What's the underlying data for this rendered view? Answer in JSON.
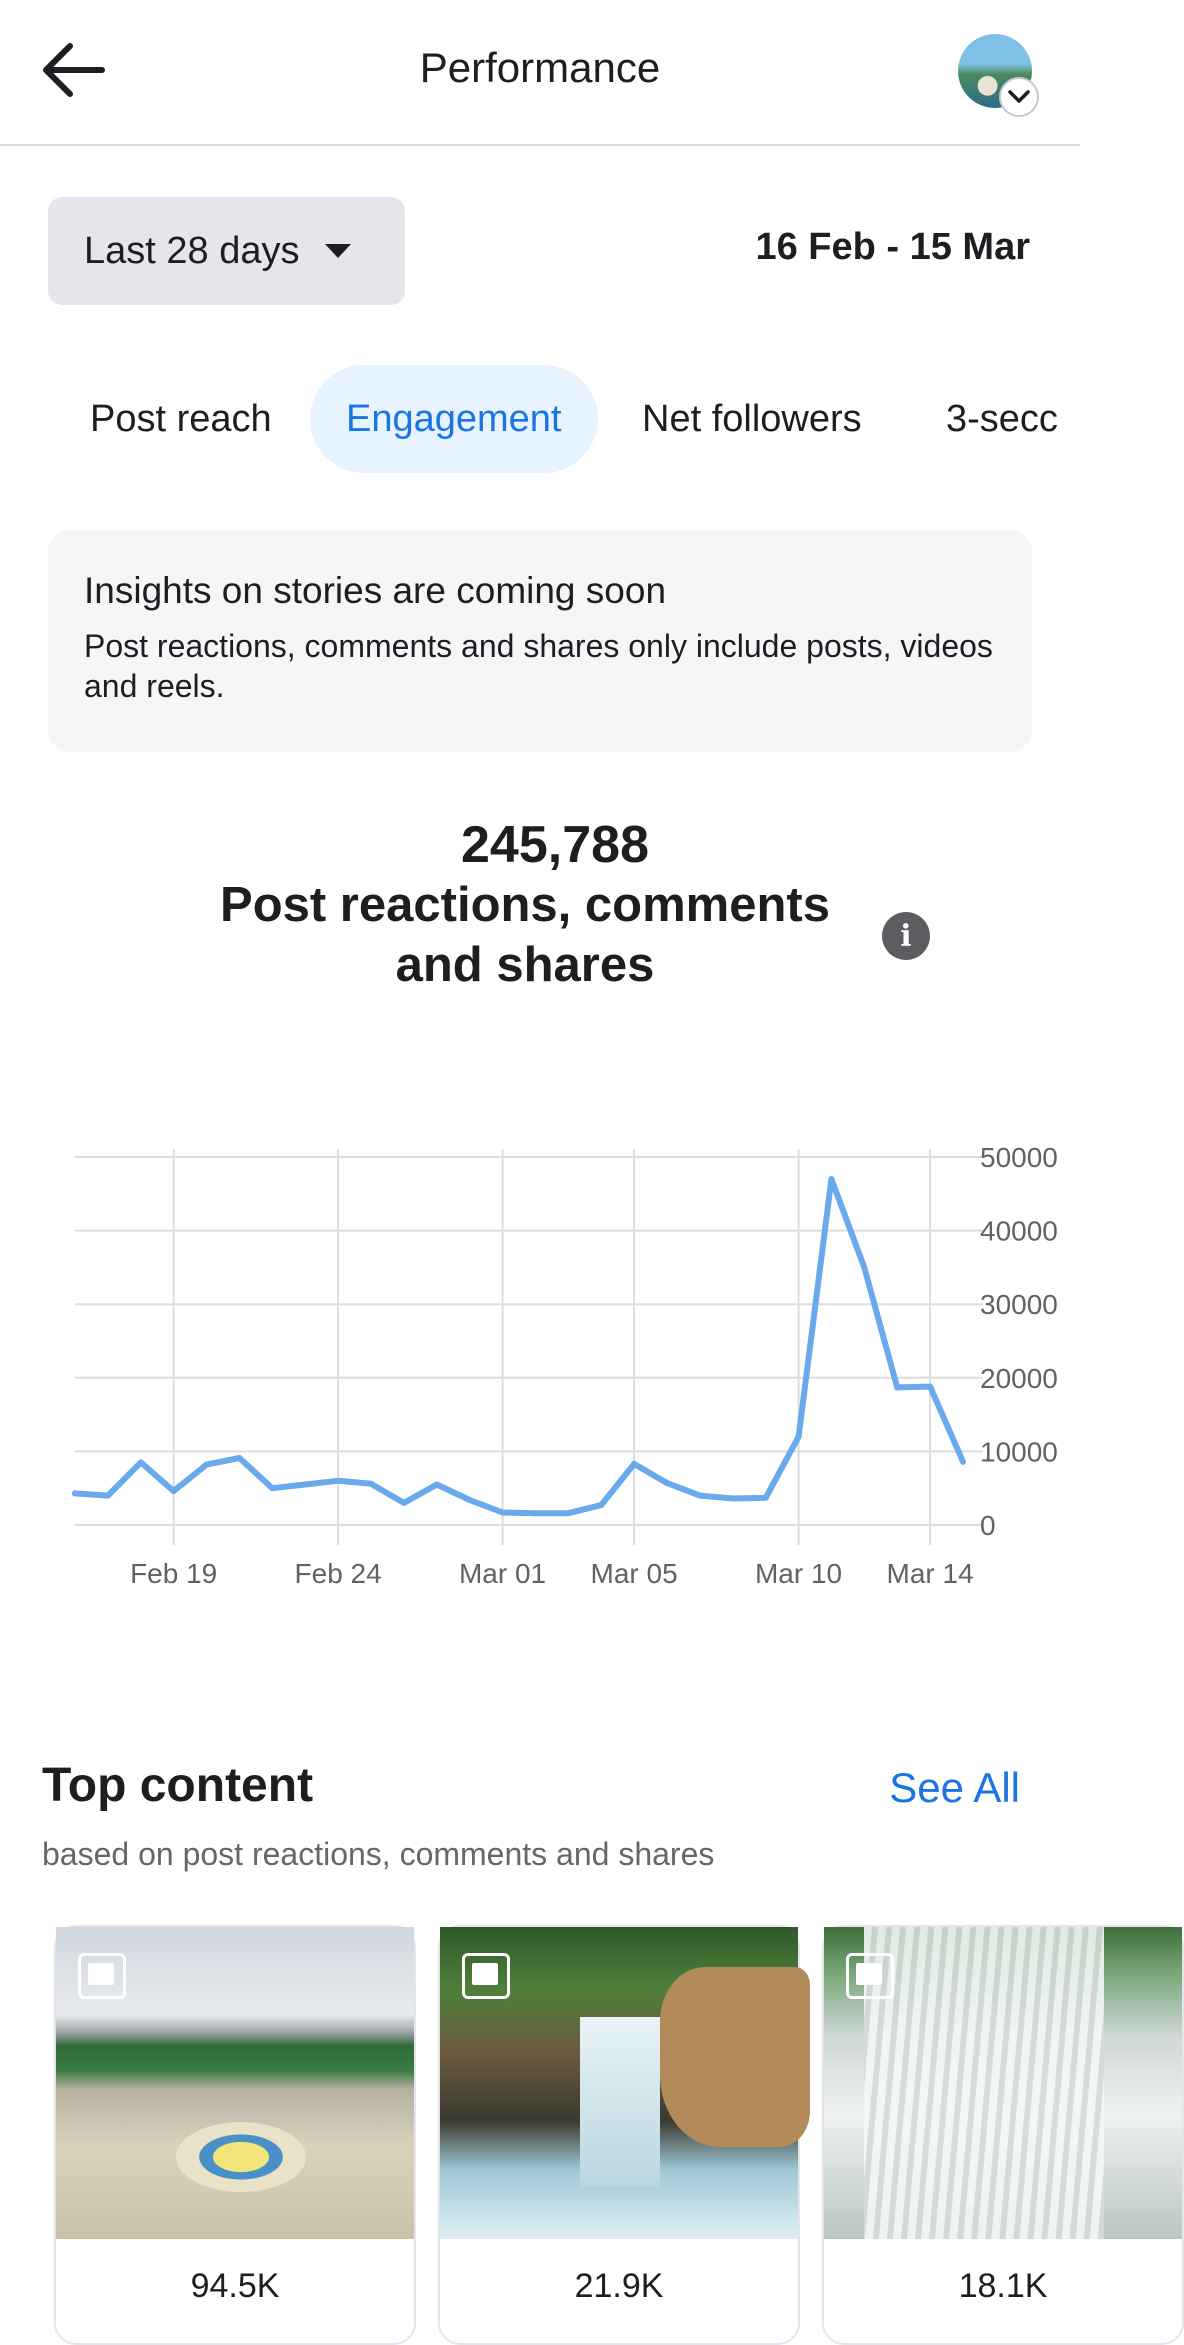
{
  "header": {
    "title": "Performance",
    "back_icon": "arrow-left-icon",
    "avatar_icon": "profile-avatar"
  },
  "filters": {
    "date_range_label": "Last 28 days",
    "date_span": "16 Feb - 15 Mar"
  },
  "tabs": [
    {
      "label": "Post reach",
      "active": false
    },
    {
      "label": "Engagement",
      "active": true
    },
    {
      "label": "Net followers",
      "active": false
    },
    {
      "label": "3-secc",
      "active": false
    }
  ],
  "notice": {
    "title": "Insights on stories are coming soon",
    "body": "Post reactions, comments and shares only include posts, videos and reels."
  },
  "metric": {
    "value": "245,788",
    "label": "Post reactions, comments and shares"
  },
  "chart_data": {
    "type": "line",
    "x": [
      "Feb 16",
      "Feb 17",
      "Feb 18",
      "Feb 19",
      "Feb 20",
      "Feb 21",
      "Feb 22",
      "Feb 23",
      "Feb 24",
      "Feb 25",
      "Feb 26",
      "Feb 27",
      "Feb 28",
      "Mar 01",
      "Mar 02",
      "Mar 03",
      "Mar 04",
      "Mar 05",
      "Mar 06",
      "Mar 07",
      "Mar 08",
      "Mar 09",
      "Mar 10",
      "Mar 11",
      "Mar 12",
      "Mar 13",
      "Mar 14",
      "Mar 15"
    ],
    "series": [
      {
        "values": [
          4300,
          4000,
          8500,
          4600,
          8200,
          9100,
          5000,
          5500,
          6000,
          5600,
          3000,
          5500,
          3400,
          1700,
          1600,
          1600,
          2700,
          8300,
          5700,
          4000,
          3600,
          3700,
          12000,
          47000,
          35000,
          18700,
          18800,
          8600
        ]
      }
    ],
    "x_tick_labels": [
      "Feb 19",
      "Feb 24",
      "Mar 01",
      "Mar 05",
      "Mar 10",
      "Mar 14"
    ],
    "x_tick_indices": [
      3,
      8,
      13,
      17,
      22,
      26
    ],
    "y_ticks": [
      0,
      10000,
      20000,
      30000,
      40000,
      50000
    ],
    "ylim": [
      0,
      50000
    ],
    "y_axis_side": "right",
    "grid": true,
    "line_color": "#6aa9ec"
  },
  "top_content": {
    "title": "Top content",
    "see_all_label": "See All",
    "subtitle": "based on post reactions, comments and shares",
    "items": [
      {
        "type_icon": "photo-icon",
        "value": "94.5K"
      },
      {
        "type_icon": "photo-icon",
        "value": "21.9K"
      },
      {
        "type_icon": "photo-icon",
        "value": "18.1K"
      }
    ]
  }
}
